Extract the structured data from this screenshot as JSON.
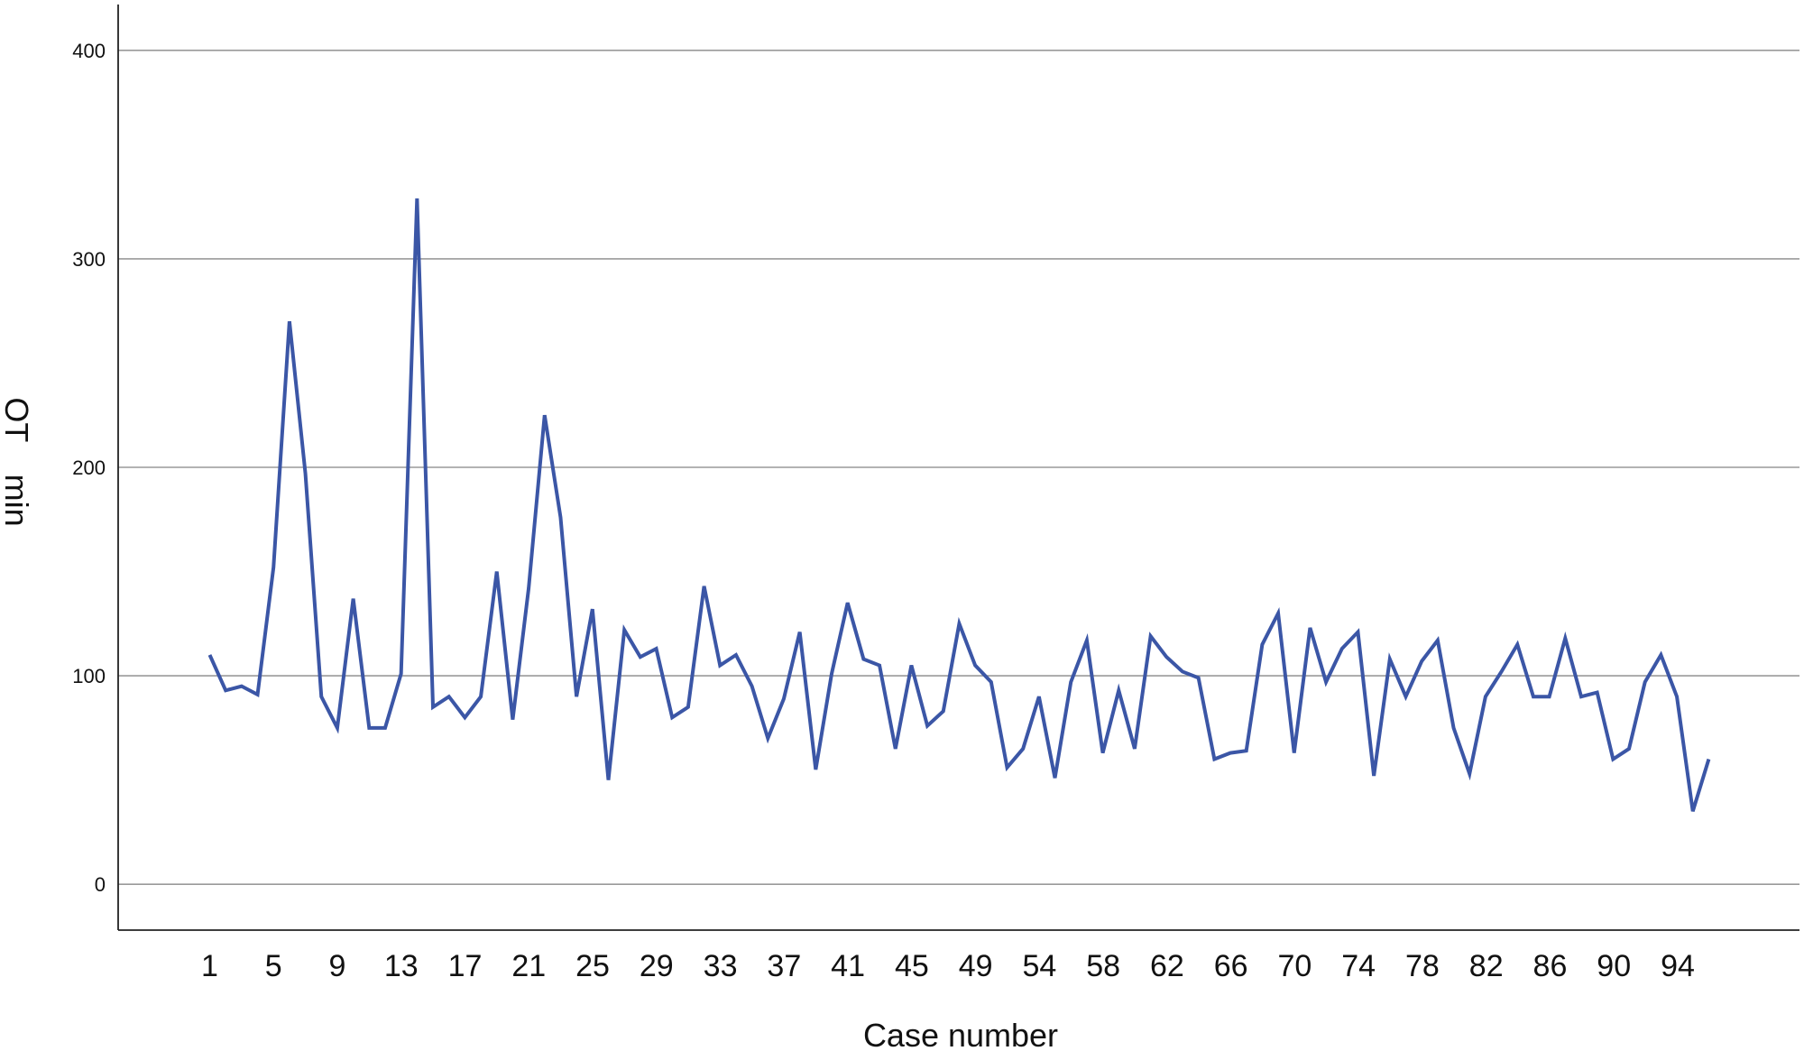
{
  "chart_data": {
    "type": "line",
    "xlabel": "Case number",
    "ylabel": "OT　min",
    "ylim": [
      -22,
      422
    ],
    "yticks": [
      0,
      100,
      200,
      300,
      400
    ],
    "grid": "horizontal",
    "x_tick_labels": [
      "1",
      "5",
      "9",
      "13",
      "17",
      "21",
      "25",
      "29",
      "33",
      "37",
      "41",
      "45",
      "49",
      "54",
      "58",
      "62",
      "66",
      "70",
      "74",
      "78",
      "82",
      "86",
      "90",
      "94"
    ],
    "series": [
      {
        "color": "#3b56a6",
        "values": [
          110,
          93,
          95,
          91,
          152,
          270,
          197,
          90,
          75,
          137,
          75,
          75,
          101,
          329,
          85,
          90,
          80,
          90,
          150,
          79,
          142,
          225,
          176,
          90,
          132,
          50,
          122,
          109,
          113,
          80,
          85,
          143,
          105,
          110,
          95,
          70,
          89,
          121,
          55,
          101,
          135,
          108,
          105,
          65,
          105,
          76,
          83,
          125,
          105,
          97,
          56,
          65,
          90,
          51,
          97,
          117,
          63,
          93,
          65,
          119,
          109,
          102,
          99,
          60,
          63,
          64,
          115,
          130,
          63,
          123,
          97,
          113,
          121,
          52,
          108,
          90,
          107,
          117,
          75,
          53,
          90,
          102,
          115,
          90,
          90,
          118,
          90,
          92,
          60,
          65,
          97,
          110,
          90,
          35,
          60
        ]
      }
    ]
  }
}
